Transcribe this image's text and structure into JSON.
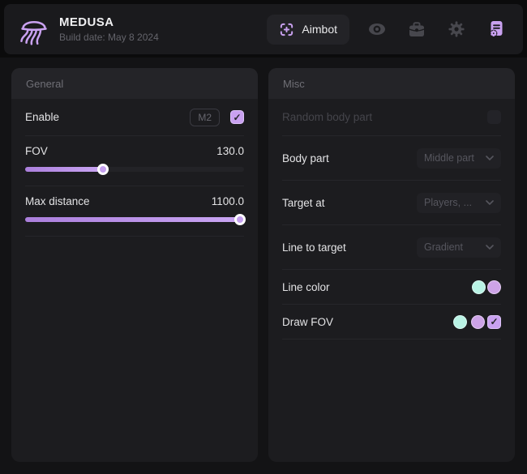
{
  "header": {
    "title": "MEDUSA",
    "subtitle": "Build date: May 8 2024",
    "active_tab": "Aimbot",
    "nav_icons": [
      "jellyfish-logo",
      "crosshair",
      "eye",
      "briefcase",
      "gear",
      "config-badge"
    ]
  },
  "glyphs": {
    "check": "✓"
  },
  "colors": {
    "accent": "#c9a1f0",
    "checkbox_fill": "#c9a1f0",
    "slider_fill": "#bf97e8"
  },
  "panels": {
    "general": {
      "title": "General",
      "enable": {
        "label": "Enable",
        "keybind": "M2",
        "checked": true
      },
      "fov": {
        "label": "FOV",
        "value": "130.0",
        "percent": 36
      },
      "max_distance": {
        "label": "Max distance",
        "value": "1100.0",
        "percent": 98.5
      }
    },
    "misc": {
      "title": "Misc",
      "random_body_part": {
        "label": "Random body part",
        "checked": false
      },
      "body_part": {
        "label": "Body part",
        "selected": "Middle part"
      },
      "target_at": {
        "label": "Target at",
        "selected": "Players, ..."
      },
      "line_to_target": {
        "label": "Line to target",
        "selected": "Gradient"
      },
      "line_color": {
        "label": "Line color",
        "colors": [
          "#b9f3e5",
          "#cda3e7"
        ]
      },
      "draw_fov": {
        "label": "Draw FOV",
        "colors": [
          "#b9f3e5",
          "#cda3e7"
        ],
        "checked": true
      }
    }
  }
}
